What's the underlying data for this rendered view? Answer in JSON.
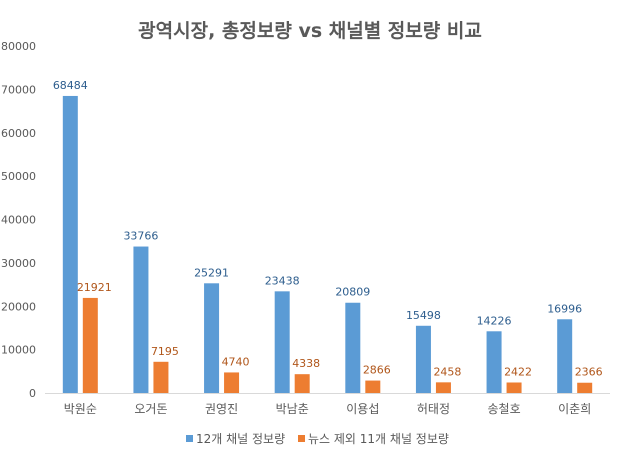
{
  "chart_data": {
    "type": "bar",
    "title": "광역시장, 총정보량 vs 채널별 정보량 비교",
    "xlabel": "",
    "ylabel": "",
    "ylim": [
      0,
      80000
    ],
    "yticks": [
      "0",
      "10000",
      "20000",
      "30000",
      "40000",
      "50000",
      "60000",
      "70000",
      "80000"
    ],
    "yticks_values": [
      0,
      10000,
      20000,
      30000,
      40000,
      50000,
      60000,
      70000,
      80000
    ],
    "grid": false,
    "legend_position": "bottom",
    "categories": [
      "박원순",
      "오거돈",
      "권영진",
      "박남춘",
      "이용섭",
      "허태정",
      "송철호",
      "이춘희"
    ],
    "series": [
      {
        "name": "12개 채널 정보량",
        "color": "#5B9BD5",
        "label_color": "#2E5E8E",
        "values": [
          68484,
          33766,
          25291,
          23438,
          20809,
          15498,
          14226,
          16996
        ]
      },
      {
        "name": "뉴스 제외 11개 채널 정보량",
        "color": "#ED7D31",
        "label_color": "#B0561A",
        "values": [
          21921,
          7195,
          4740,
          4338,
          2866,
          2458,
          2422,
          2366
        ]
      }
    ]
  }
}
